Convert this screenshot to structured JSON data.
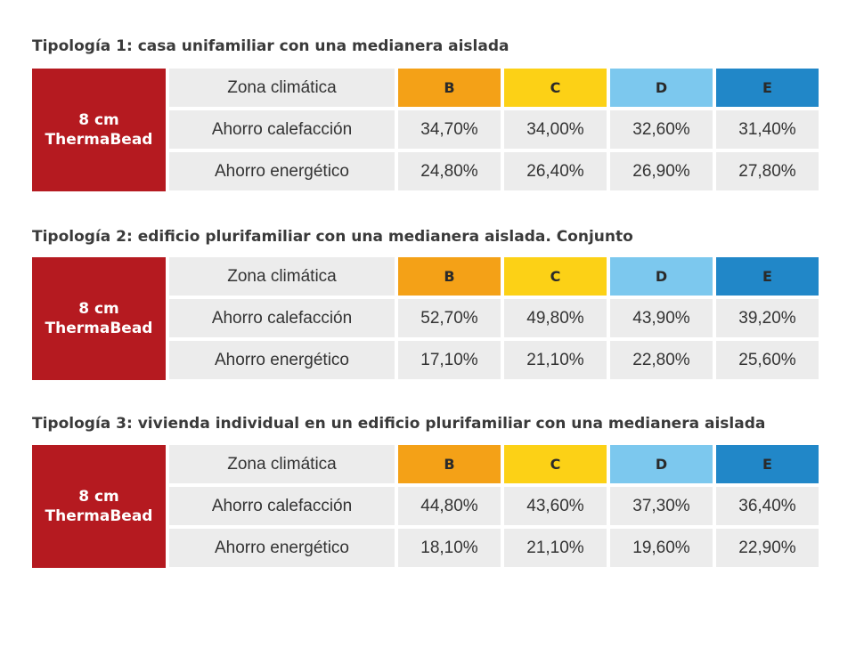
{
  "label_line1": "8 cm",
  "label_line2": "ThermaBead",
  "row_labels": {
    "zona": "Zona climática",
    "calefaccion": "Ahorro calefacción",
    "energetico": "Ahorro energético"
  },
  "zones": [
    "B",
    "C",
    "D",
    "E"
  ],
  "zone_colors": [
    "#f4a117",
    "#fcd116",
    "#7cc8ee",
    "#2187c8"
  ],
  "tables": [
    {
      "title": "Tipología 1: casa unifamiliar con una medianera aislada",
      "calefaccion": [
        "34,70%",
        "34,00%",
        "32,60%",
        "31,40%"
      ],
      "energetico": [
        "24,80%",
        "26,40%",
        "26,90%",
        "27,80%"
      ]
    },
    {
      "title": "Tipología 2: edificio plurifamiliar con una medianera aislada. Conjunto",
      "calefaccion": [
        "52,70%",
        "49,80%",
        "43,90%",
        "39,20%"
      ],
      "energetico": [
        "17,10%",
        "21,10%",
        "22,80%",
        "25,60%"
      ]
    },
    {
      "title": "Tipología 3: vivienda individual en un edificio plurifamiliar con una medianera aislada",
      "calefaccion": [
        "44,80%",
        "43,60%",
        "37,30%",
        "36,40%"
      ],
      "energetico": [
        "18,10%",
        "21,10%",
        "19,60%",
        "22,90%"
      ]
    }
  ]
}
